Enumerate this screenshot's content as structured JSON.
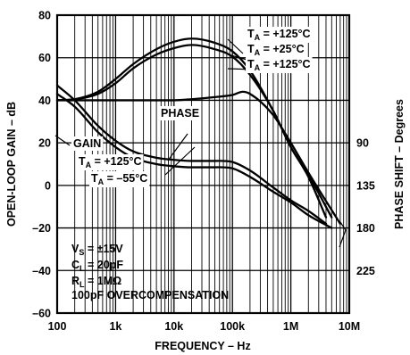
{
  "chart_data": {
    "type": "line",
    "xscale": "log",
    "x_range": [
      100,
      10000000
    ],
    "y_range": [
      -60,
      80
    ],
    "y2_range": [
      270,
      -45
    ],
    "grid": true,
    "xlabel": "FREQUENCY – Hz",
    "ylabel": "OPEN-LOOP GAIN – dB",
    "y2label": "PHASE SHIFT – Degrees",
    "x_tick_labels": [
      {
        "value": 100,
        "label": "100"
      },
      {
        "value": 1000,
        "label": "1k"
      },
      {
        "value": 10000,
        "label": "10k"
      },
      {
        "value": 100000,
        "label": "100k"
      },
      {
        "value": 1000000,
        "label": "1M"
      },
      {
        "value": 10000000,
        "label": "10M"
      }
    ],
    "y_tick_labels": [
      {
        "value": 80,
        "label": "80"
      },
      {
        "value": 60,
        "label": "60"
      },
      {
        "value": 40,
        "label": "40"
      },
      {
        "value": 20,
        "label": "20"
      },
      {
        "value": 0,
        "label": "0"
      },
      {
        "value": -20,
        "label": "–20"
      },
      {
        "value": -40,
        "label": "–40"
      },
      {
        "value": -60,
        "label": "–60"
      }
    ],
    "y2_tick_labels": [
      {
        "value": 90,
        "label": "90"
      },
      {
        "value": 135,
        "label": "135"
      },
      {
        "value": 180,
        "label": "180"
      },
      {
        "value": 225,
        "label": "225"
      }
    ],
    "series": [
      {
        "axis": "y",
        "x": [
          100,
          200,
          500,
          1000,
          2000,
          5000,
          10000,
          20000,
          50000,
          100000,
          200000,
          500000,
          1000000,
          2000000,
          4000000
        ],
        "y": [
          40,
          40.5,
          44,
          50,
          57,
          64,
          67.5,
          69,
          67,
          63,
          54,
          35,
          18,
          4,
          -15
        ]
      },
      {
        "axis": "y",
        "x": [
          100,
          200,
          500,
          1000,
          2000,
          5000,
          10000,
          20000,
          50000,
          100000,
          200000,
          500000,
          1000000,
          2000000,
          5000000
        ],
        "y": [
          40,
          40.5,
          43,
          48,
          55,
          61.5,
          64.5,
          66,
          64,
          60.5,
          52,
          35,
          18,
          5,
          -15
        ]
      },
      {
        "axis": "y",
        "x": [
          100,
          200,
          500,
          1000,
          2000,
          5000,
          10000,
          20000,
          50000,
          100000,
          150000,
          200000,
          500000,
          1000000,
          2000000,
          7000000
        ],
        "y": [
          40,
          40,
          40,
          40,
          40,
          40,
          40,
          40.5,
          41.5,
          42.5,
          44,
          43,
          33,
          20,
          6,
          -18
        ]
      },
      {
        "axis": "y",
        "x": [
          100,
          200,
          500,
          1000,
          2000,
          5000,
          10000,
          20000,
          50000,
          100000,
          200000,
          500000,
          1000000,
          2000000,
          4000000
        ],
        "y": [
          47,
          40,
          28,
          21,
          16,
          13,
          12,
          11.5,
          11.5,
          11,
          7,
          -1,
          -7,
          -12,
          -18
        ]
      },
      {
        "axis": "y",
        "x": [
          100,
          200,
          500,
          1000,
          2000,
          5000,
          10000,
          20000,
          50000,
          100000,
          200000,
          500000,
          1000000,
          2000000,
          5000000
        ],
        "y": [
          43,
          37,
          25,
          18,
          13,
          10,
          9,
          8.5,
          8.5,
          8,
          4,
          -3,
          -8,
          -14,
          -20
        ]
      }
    ],
    "annotations": [
      {
        "main": "T",
        "sub": "A",
        "rest": " = +125°C"
      },
      {
        "main": "T",
        "sub": "A",
        "rest": " = +25°C"
      },
      {
        "main": "T",
        "sub": "A",
        "rest": " = +125°C"
      },
      {
        "main": "PHASE"
      },
      {
        "main": "GAIN"
      },
      {
        "main": "T",
        "sub": "A",
        "rest": " = +125°C"
      },
      {
        "main": "T",
        "sub": "A",
        "rest": " = –55°C"
      },
      {
        "main": "V",
        "sub": "S",
        "rest": " = ±15V"
      },
      {
        "main": "C",
        "sub": "L",
        "rest": " = 20pF"
      },
      {
        "main": "R",
        "sub": "L",
        "rest": " = 1MΩ"
      },
      {
        "main": "100pF OVERCOMPENSATION"
      }
    ]
  }
}
